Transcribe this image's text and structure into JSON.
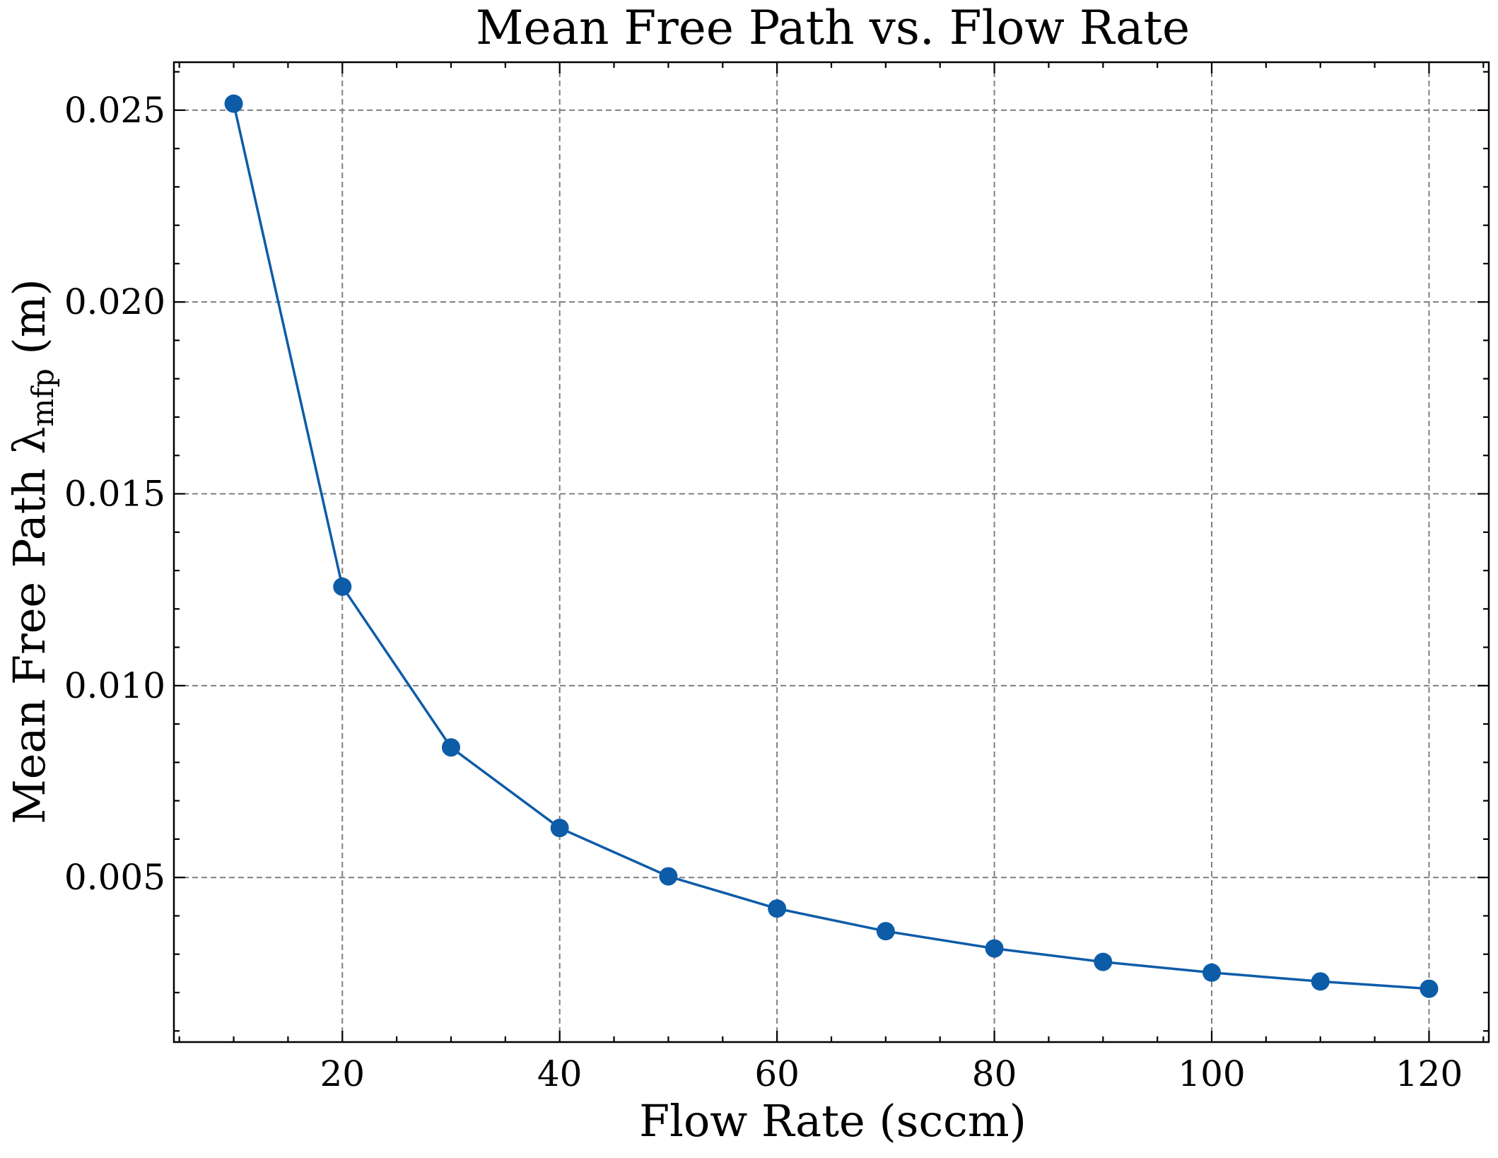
{
  "chart_data": {
    "type": "line",
    "title": "Mean Free Path vs. Flow Rate",
    "xlabel": "Flow Rate (sccm)",
    "ylabel_main": "Mean Free Path λ",
    "ylabel_sub": "mfp",
    "ylabel_unit": " (m)",
    "xlim": [
      4.5,
      125.5
    ],
    "ylim": [
      0.00071,
      0.02625
    ],
    "x_ticks": [
      20,
      40,
      60,
      80,
      100,
      120
    ],
    "y_ticks": [
      0.005,
      0.01,
      0.015,
      0.02,
      0.025
    ],
    "y_tick_labels": [
      "0.005",
      "0.010",
      "0.015",
      "0.020",
      "0.025"
    ],
    "x_minor_step": 5,
    "y_minor_step": 0.001,
    "grid": true,
    "color": "#0d5ca8",
    "series": [
      {
        "x": [
          10,
          20,
          30,
          40,
          50,
          60,
          70,
          80,
          90,
          100,
          110,
          120
        ],
        "y": [
          0.02517,
          0.01258,
          0.00839,
          0.00629,
          0.00503,
          0.00419,
          0.0036,
          0.00315,
          0.0028,
          0.00252,
          0.00229,
          0.0021
        ]
      }
    ]
  }
}
